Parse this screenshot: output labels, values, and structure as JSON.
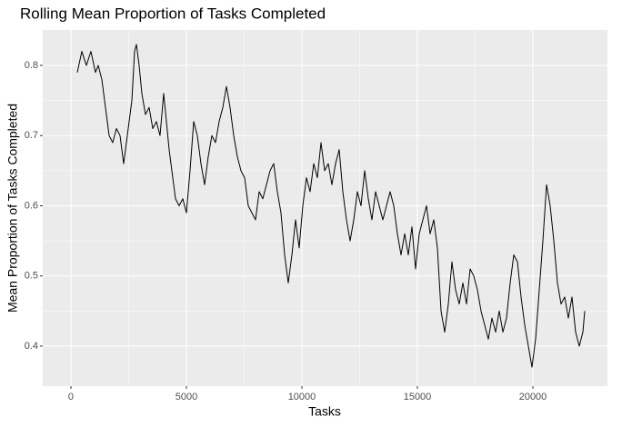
{
  "chart_data": {
    "type": "line",
    "title": "Rolling Mean Proportion of Tasks Completed",
    "x_label": "Tasks",
    "y_label": "Mean Proportion of Tasks Completed",
    "xlim": [
      -1220,
      23228
    ],
    "ylim": [
      0.343,
      0.8505
    ],
    "xticks": [
      0,
      5000,
      10000,
      15000,
      20000
    ],
    "yticks": [
      0.4,
      0.5,
      0.6,
      0.7,
      0.8
    ],
    "grid": true,
    "minor_grid": true,
    "color": "#000000",
    "x": [
      276,
      472,
      669,
      866,
      1063,
      1181,
      1339,
      1457,
      1575,
      1654,
      1811,
      1969,
      2126,
      2283,
      2441,
      2638,
      2756,
      2835,
      2953,
      3071,
      3228,
      3386,
      3543,
      3701,
      3858,
      4016,
      4134,
      4252,
      4409,
      4528,
      4685,
      4843,
      5000,
      5157,
      5315,
      5472,
      5630,
      5787,
      5945,
      6102,
      6260,
      6417,
      6575,
      6732,
      6890,
      7047,
      7205,
      7362,
      7520,
      7677,
      7835,
      7992,
      8150,
      8307,
      8465,
      8622,
      8780,
      8937,
      9094,
      9252,
      9409,
      9567,
      9724,
      9882,
      10039,
      10197,
      10354,
      10512,
      10669,
      10827,
      10984,
      11142,
      11299,
      11457,
      11614,
      11772,
      11929,
      12087,
      12244,
      12402,
      12559,
      12717,
      12874,
      13031,
      13189,
      13346,
      13504,
      13661,
      13819,
      13976,
      14134,
      14291,
      14449,
      14606,
      14764,
      14921,
      15079,
      15236,
      15394,
      15551,
      15709,
      15866,
      16024,
      16181,
      16339,
      16496,
      16654,
      16811,
      16969,
      17126,
      17283,
      17441,
      17598,
      17756,
      17913,
      18071,
      18228,
      18386,
      18543,
      18701,
      18858,
      19016,
      19173,
      19331,
      19488,
      19646,
      19803,
      19961,
      20118,
      20276,
      20433,
      20591,
      20748,
      20906,
      21063,
      21220,
      21378,
      21535,
      21693,
      21850,
      22008,
      22165,
      22244
    ],
    "values": [
      0.79,
      0.82,
      0.8,
      0.82,
      0.79,
      0.8,
      0.78,
      0.75,
      0.72,
      0.7,
      0.69,
      0.71,
      0.7,
      0.66,
      0.7,
      0.75,
      0.82,
      0.83,
      0.8,
      0.76,
      0.73,
      0.74,
      0.71,
      0.72,
      0.7,
      0.76,
      0.72,
      0.68,
      0.64,
      0.61,
      0.6,
      0.61,
      0.59,
      0.65,
      0.72,
      0.7,
      0.66,
      0.63,
      0.67,
      0.7,
      0.69,
      0.72,
      0.74,
      0.77,
      0.74,
      0.7,
      0.67,
      0.65,
      0.64,
      0.6,
      0.59,
      0.58,
      0.62,
      0.61,
      0.63,
      0.65,
      0.66,
      0.62,
      0.59,
      0.53,
      0.49,
      0.53,
      0.58,
      0.54,
      0.6,
      0.64,
      0.62,
      0.66,
      0.64,
      0.69,
      0.65,
      0.66,
      0.63,
      0.66,
      0.68,
      0.62,
      0.58,
      0.55,
      0.58,
      0.62,
      0.6,
      0.65,
      0.61,
      0.58,
      0.62,
      0.6,
      0.58,
      0.6,
      0.62,
      0.6,
      0.56,
      0.53,
      0.56,
      0.53,
      0.57,
      0.51,
      0.56,
      0.58,
      0.6,
      0.56,
      0.58,
      0.54,
      0.45,
      0.42,
      0.46,
      0.52,
      0.48,
      0.46,
      0.49,
      0.46,
      0.51,
      0.5,
      0.48,
      0.45,
      0.43,
      0.41,
      0.44,
      0.42,
      0.45,
      0.42,
      0.44,
      0.49,
      0.53,
      0.52,
      0.47,
      0.43,
      0.4,
      0.37,
      0.41,
      0.48,
      0.55,
      0.63,
      0.6,
      0.55,
      0.49,
      0.46,
      0.47,
      0.44,
      0.47,
      0.42,
      0.4,
      0.42,
      0.45
    ]
  }
}
